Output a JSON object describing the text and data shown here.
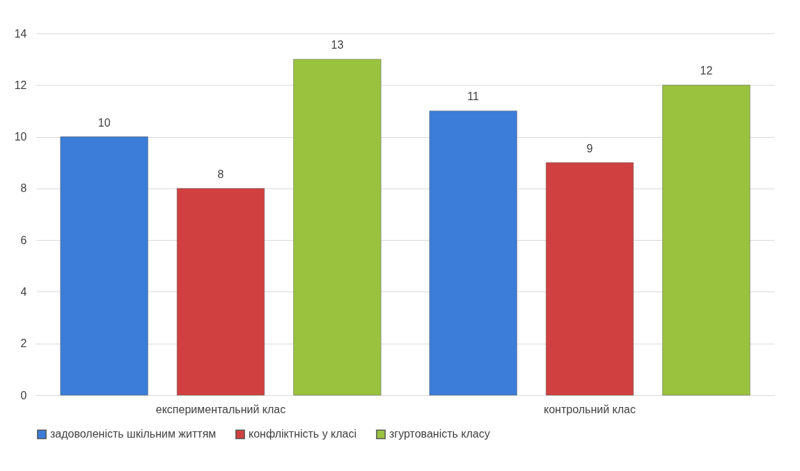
{
  "chart_data": {
    "type": "bar",
    "categories": [
      "експериментальний клас",
      "контрольний клас"
    ],
    "series": [
      {
        "name": "задоволеність шкільним життям",
        "color": "#3b7dd8",
        "values": [
          10,
          11
        ]
      },
      {
        "name": "конфліктність у класі",
        "color": "#d04040",
        "values": [
          8,
          9
        ]
      },
      {
        "name": "згуртованість класу",
        "color": "#9bc23f",
        "values": [
          13,
          12
        ]
      }
    ],
    "ylim": [
      0,
      14
    ],
    "yticks": [
      0,
      2,
      4,
      6,
      8,
      10,
      12,
      14
    ],
    "grid": "y",
    "legend": "bottom",
    "data_labels": true
  }
}
